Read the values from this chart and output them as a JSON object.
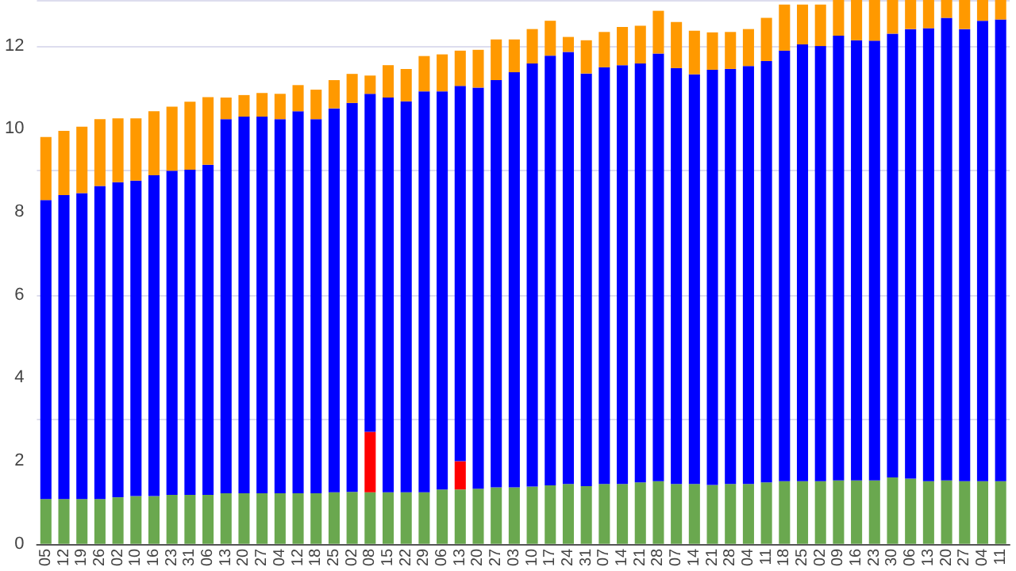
{
  "chart_data": {
    "type": "bar",
    "stacked": true,
    "categories": [
      "05",
      "12",
      "19",
      "26",
      "02",
      "10",
      "16",
      "23",
      "31",
      "06",
      "13",
      "20",
      "27",
      "04",
      "12",
      "18",
      "25",
      "02",
      "08",
      "15",
      "22",
      "29",
      "06",
      "13",
      "20",
      "27",
      "03",
      "10",
      "17",
      "24",
      "31",
      "07",
      "14",
      "21",
      "28",
      "07",
      "14",
      "21",
      "28",
      "04",
      "11",
      "18",
      "25",
      "02",
      "09",
      "16",
      "23",
      "30",
      "06",
      "13",
      "20",
      "27",
      "04",
      "11"
    ],
    "series": [
      {
        "color": "#6aa84f",
        "values": [
          1.08,
          1.08,
          1.08,
          1.08,
          1.12,
          1.15,
          1.15,
          1.18,
          1.18,
          1.18,
          1.22,
          1.22,
          1.22,
          1.22,
          1.22,
          1.22,
          1.24,
          1.25,
          1.24,
          1.24,
          1.24,
          1.24,
          1.31,
          1.31,
          1.33,
          1.36,
          1.36,
          1.38,
          1.41,
          1.44,
          1.39,
          1.44,
          1.44,
          1.48,
          1.51,
          1.44,
          1.44,
          1.42,
          1.44,
          1.44,
          1.48,
          1.51,
          1.51,
          1.51,
          1.53,
          1.53,
          1.53,
          1.6,
          1.57,
          1.51,
          1.53,
          1.51,
          1.51,
          1.51
        ]
      },
      {
        "color": "#ff0000",
        "values": [
          null,
          null,
          null,
          null,
          null,
          null,
          null,
          null,
          null,
          null,
          null,
          null,
          null,
          null,
          null,
          null,
          null,
          null,
          1.46,
          null,
          null,
          null,
          null,
          0.68,
          null,
          null,
          null,
          null,
          null,
          null,
          null,
          null,
          null,
          null,
          null,
          null,
          null,
          null,
          null,
          null,
          null,
          null,
          null,
          null,
          null,
          null,
          null,
          null,
          null,
          null,
          null,
          null,
          null,
          null
        ]
      },
      {
        "color": "#0000ff",
        "values": [
          7.2,
          7.32,
          7.37,
          7.54,
          7.59,
          7.6,
          7.73,
          7.81,
          7.83,
          7.95,
          9.01,
          9.07,
          9.07,
          9.01,
          9.2,
          9.01,
          9.25,
          9.37,
          8.14,
          9.51,
          9.42,
          9.66,
          9.59,
          9.04,
          9.66,
          9.81,
          10.0,
          10.19,
          10.35,
          10.41,
          9.94,
          10.04,
          10.09,
          10.09,
          10.3,
          10.02,
          9.87,
          10.0,
          10.0,
          10.07,
          10.15,
          10.37,
          10.52,
          10.48,
          10.71,
          10.6,
          10.59,
          10.69,
          10.83,
          10.91,
          11.14,
          10.89,
          11.09,
          11.12
        ]
      },
      {
        "color": "#ff9900",
        "values": [
          1.52,
          1.55,
          1.6,
          1.61,
          1.54,
          1.5,
          1.54,
          1.54,
          1.64,
          1.63,
          0.52,
          0.52,
          0.57,
          0.61,
          0.63,
          0.71,
          0.68,
          0.7,
          0.44,
          0.78,
          0.78,
          0.85,
          0.89,
          0.85,
          0.91,
          0.98,
          0.79,
          0.83,
          0.84,
          0.36,
          0.8,
          0.85,
          0.92,
          0.91,
          1.03,
          1.11,
          1.05,
          0.9,
          0.89,
          0.89,
          1.04,
          1.11,
          0.96,
          1.0,
          0.86,
          0.97,
          0.98,
          0.81,
          0.7,
          0.68,
          0.43,
          0.7,
          0.5,
          0.47
        ]
      }
    ],
    "ylim": [
      0,
      13.1
    ],
    "yticks": [
      0,
      2,
      4,
      6,
      8,
      10,
      12
    ],
    "grid": "y"
  }
}
